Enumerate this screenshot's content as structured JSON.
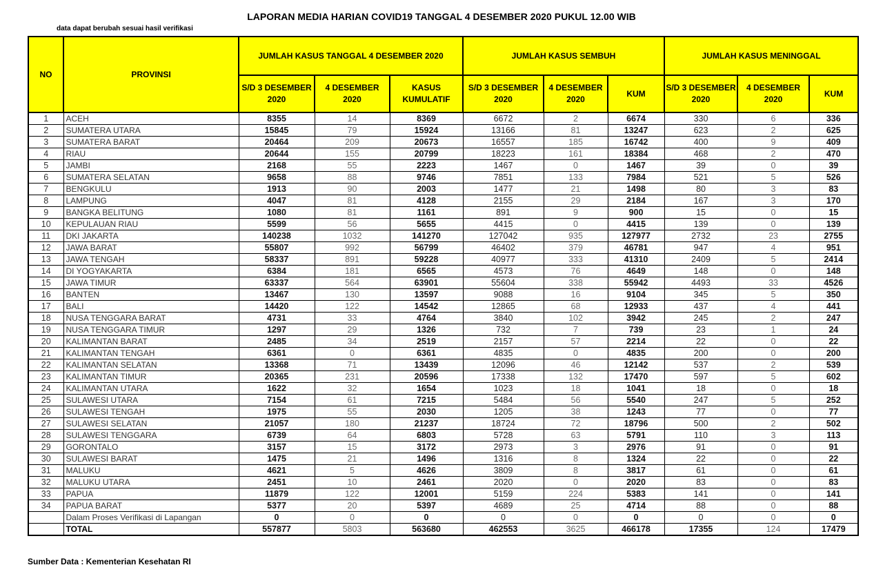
{
  "title": "LAPORAN MEDIA HARIAN COVID19 TANGGAL 4 DESEMBER 2020 PUKUL 12.00 WIB",
  "subtitle": "data dapat berubah sesuai hasil verifikasi",
  "footer": "Sumber Data : Kementerian Kesehatan RI",
  "headers": {
    "no": "NO",
    "provinsi": "PROVINSI",
    "groups": [
      "JUMLAH KASUS TANGGAL 4 DESEMBER 2020",
      "JUMLAH KASUS SEMBUH",
      "JUMLAH KASUS MENINGGAL"
    ],
    "sub": [
      "S/D 3 DESEMBER 2020",
      "4 DESEMBER 2020",
      "KASUS KUMULATIF",
      "S/D 3 DESEMBER 2020",
      "4 DESEMBER 2020",
      "KUM",
      "S/D 3 DESEMBER 2020",
      "4 DESEMBER 2020",
      "KUM"
    ]
  },
  "rows": [
    [
      "1",
      "ACEH",
      "8355",
      "14",
      "8369",
      "6672",
      "2",
      "6674",
      "330",
      "6",
      "336"
    ],
    [
      "2",
      "SUMATERA UTARA",
      "15845",
      "79",
      "15924",
      "13166",
      "81",
      "13247",
      "623",
      "2",
      "625"
    ],
    [
      "3",
      "SUMATERA BARAT",
      "20464",
      "209",
      "20673",
      "16557",
      "185",
      "16742",
      "400",
      "9",
      "409"
    ],
    [
      "4",
      "RIAU",
      "20644",
      "155",
      "20799",
      "18223",
      "161",
      "18384",
      "468",
      "2",
      "470"
    ],
    [
      "5",
      "JAMBI",
      "2168",
      "55",
      "2223",
      "1467",
      "0",
      "1467",
      "39",
      "0",
      "39"
    ],
    [
      "6",
      "SUMATERA SELATAN",
      "9658",
      "88",
      "9746",
      "7851",
      "133",
      "7984",
      "521",
      "5",
      "526"
    ],
    [
      "7",
      "BENGKULU",
      "1913",
      "90",
      "2003",
      "1477",
      "21",
      "1498",
      "80",
      "3",
      "83"
    ],
    [
      "8",
      "LAMPUNG",
      "4047",
      "81",
      "4128",
      "2155",
      "29",
      "2184",
      "167",
      "3",
      "170"
    ],
    [
      "9",
      "BANGKA BELITUNG",
      "1080",
      "81",
      "1161",
      "891",
      "9",
      "900",
      "15",
      "0",
      "15"
    ],
    [
      "10",
      "KEPULAUAN RIAU",
      "5599",
      "56",
      "5655",
      "4415",
      "0",
      "4415",
      "139",
      "0",
      "139"
    ],
    [
      "11",
      "DKI JAKARTA",
      "140238",
      "1032",
      "141270",
      "127042",
      "935",
      "127977",
      "2732",
      "23",
      "2755"
    ],
    [
      "12",
      "JAWA BARAT",
      "55807",
      "992",
      "56799",
      "46402",
      "379",
      "46781",
      "947",
      "4",
      "951"
    ],
    [
      "13",
      "JAWA TENGAH",
      "58337",
      "891",
      "59228",
      "40977",
      "333",
      "41310",
      "2409",
      "5",
      "2414"
    ],
    [
      "14",
      "DI YOGYAKARTA",
      "6384",
      "181",
      "6565",
      "4573",
      "76",
      "4649",
      "148",
      "0",
      "148"
    ],
    [
      "15",
      "JAWA TIMUR",
      "63337",
      "564",
      "63901",
      "55604",
      "338",
      "55942",
      "4493",
      "33",
      "4526"
    ],
    [
      "16",
      "BANTEN",
      "13467",
      "130",
      "13597",
      "9088",
      "16",
      "9104",
      "345",
      "5",
      "350"
    ],
    [
      "17",
      "BALI",
      "14420",
      "122",
      "14542",
      "12865",
      "68",
      "12933",
      "437",
      "4",
      "441"
    ],
    [
      "18",
      "NUSA TENGGARA BARAT",
      "4731",
      "33",
      "4764",
      "3840",
      "102",
      "3942",
      "245",
      "2",
      "247"
    ],
    [
      "19",
      "NUSA TENGGARA TIMUR",
      "1297",
      "29",
      "1326",
      "732",
      "7",
      "739",
      "23",
      "1",
      "24"
    ],
    [
      "20",
      "KALIMANTAN BARAT",
      "2485",
      "34",
      "2519",
      "2157",
      "57",
      "2214",
      "22",
      "0",
      "22"
    ],
    [
      "21",
      "KALIMANTAN TENGAH",
      "6361",
      "0",
      "6361",
      "4835",
      "0",
      "4835",
      "200",
      "0",
      "200"
    ],
    [
      "22",
      "KALIMANTAN SELATAN",
      "13368",
      "71",
      "13439",
      "12096",
      "46",
      "12142",
      "537",
      "2",
      "539"
    ],
    [
      "23",
      "KALIMANTAN TIMUR",
      "20365",
      "231",
      "20596",
      "17338",
      "132",
      "17470",
      "597",
      "5",
      "602"
    ],
    [
      "24",
      "KALIMANTAN UTARA",
      "1622",
      "32",
      "1654",
      "1023",
      "18",
      "1041",
      "18",
      "0",
      "18"
    ],
    [
      "25",
      "SULAWESI UTARA",
      "7154",
      "61",
      "7215",
      "5484",
      "56",
      "5540",
      "247",
      "5",
      "252"
    ],
    [
      "26",
      "SULAWESI TENGAH",
      "1975",
      "55",
      "2030",
      "1205",
      "38",
      "1243",
      "77",
      "0",
      "77"
    ],
    [
      "27",
      "SULAWESI SELATAN",
      "21057",
      "180",
      "21237",
      "18724",
      "72",
      "18796",
      "500",
      "2",
      "502"
    ],
    [
      "28",
      "SULAWESI TENGGARA",
      "6739",
      "64",
      "6803",
      "5728",
      "63",
      "5791",
      "110",
      "3",
      "113"
    ],
    [
      "29",
      "GORONTALO",
      "3157",
      "15",
      "3172",
      "2973",
      "3",
      "2976",
      "91",
      "0",
      "91"
    ],
    [
      "30",
      "SULAWESI BARAT",
      "1475",
      "21",
      "1496",
      "1316",
      "8",
      "1324",
      "22",
      "0",
      "22"
    ],
    [
      "31",
      "MALUKU",
      "4621",
      "5",
      "4626",
      "3809",
      "8",
      "3817",
      "61",
      "0",
      "61"
    ],
    [
      "32",
      "MALUKU UTARA",
      "2451",
      "10",
      "2461",
      "2020",
      "0",
      "2020",
      "83",
      "0",
      "83"
    ],
    [
      "33",
      "PAPUA",
      "11879",
      "122",
      "12001",
      "5159",
      "224",
      "5383",
      "141",
      "0",
      "141"
    ],
    [
      "34",
      "PAPUA BARAT",
      "5377",
      "20",
      "5397",
      "4689",
      "25",
      "4714",
      "88",
      "0",
      "88"
    ],
    [
      "",
      "Dalam Proses Verifikasi di Lapangan",
      "0",
      "0",
      "0",
      "0",
      "0",
      "0",
      "0",
      "0",
      "0"
    ]
  ],
  "total": [
    "",
    "TOTAL",
    "557877",
    "5803",
    "563680",
    "462553",
    "3625",
    "466178",
    "17355",
    "124",
    "17479"
  ],
  "colors": {
    "header_bg": "#ffff00"
  }
}
